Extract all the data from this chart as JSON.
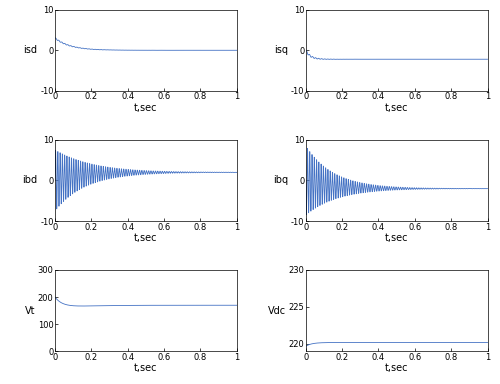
{
  "figsize": [
    5.0,
    3.84
  ],
  "dpi": 100,
  "line_color": "#4472c4",
  "line_width": 0.6,
  "bg_color": "#ffffff",
  "subplot_bg": "#ffffff",
  "plots": [
    {
      "ylabel": "isd",
      "ylim": [
        -10,
        10
      ],
      "xlim": [
        0,
        1
      ],
      "xticks": [
        0,
        0.2,
        0.4,
        0.6,
        0.8,
        1
      ],
      "yticks": [
        -10,
        0,
        10
      ],
      "signal": "isd"
    },
    {
      "ylabel": "isq",
      "ylim": [
        -10,
        10
      ],
      "xlim": [
        0,
        1
      ],
      "xticks": [
        0,
        0.2,
        0.4,
        0.6,
        0.8,
        1
      ],
      "yticks": [
        -10,
        0,
        10
      ],
      "signal": "isq"
    },
    {
      "ylabel": "ibd",
      "ylim": [
        -10,
        10
      ],
      "xlim": [
        0,
        1
      ],
      "xticks": [
        0,
        0.2,
        0.4,
        0.6,
        0.8,
        1
      ],
      "yticks": [
        -10,
        0,
        10
      ],
      "signal": "ibd"
    },
    {
      "ylabel": "ibq",
      "ylim": [
        -10,
        10
      ],
      "xlim": [
        0,
        1
      ],
      "xticks": [
        0,
        0.2,
        0.4,
        0.6,
        0.8,
        1
      ],
      "yticks": [
        -10,
        0,
        10
      ],
      "signal": "ibq"
    },
    {
      "ylabel": "Vt",
      "ylim": [
        0,
        300
      ],
      "xlim": [
        0,
        1
      ],
      "xticks": [
        0,
        0.2,
        0.4,
        0.6,
        0.8,
        1
      ],
      "yticks": [
        0,
        100,
        200,
        300
      ],
      "signal": "Vt"
    },
    {
      "ylabel": "Vdc",
      "ylim": [
        219,
        230
      ],
      "xlim": [
        0,
        1
      ],
      "xticks": [
        0,
        0.2,
        0.4,
        0.6,
        0.8,
        1
      ],
      "yticks": [
        220,
        225,
        230
      ],
      "signal": "Vdc"
    }
  ],
  "xlabel": "t,sec"
}
